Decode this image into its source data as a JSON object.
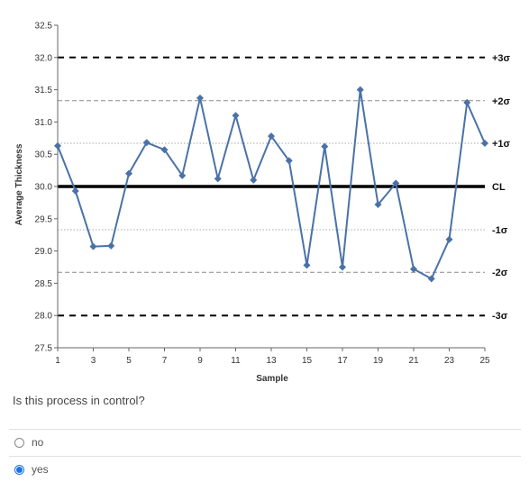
{
  "colors": {
    "series": "#4a72a8",
    "cl": "#000000",
    "sigma1": "#a8a8a8",
    "sigma2": "#8a8a8a",
    "sigma3": "#000000",
    "accent": "#1a73e8"
  },
  "chart_data": {
    "type": "line",
    "xlabel": "Sample",
    "ylabel": "Average Thickness",
    "xlim": [
      1,
      25
    ],
    "ylim": [
      27.5,
      32.5
    ],
    "xticks": [
      1,
      3,
      5,
      7,
      9,
      11,
      13,
      15,
      17,
      19,
      21,
      23,
      25
    ],
    "yticks": [
      27.5,
      28.0,
      28.5,
      29.0,
      29.5,
      30.0,
      30.5,
      31.0,
      31.5,
      32.0,
      32.5
    ],
    "ytick_labels": [
      "27.5",
      "28.0",
      "28.5",
      "29.0",
      "29.5",
      "30.0",
      "30.5",
      "31.0",
      "31.5",
      "32.0",
      "32.5"
    ],
    "grid": false,
    "series": [
      {
        "x": [
          1,
          2,
          3,
          4,
          5,
          6,
          7,
          8,
          9,
          10,
          11,
          12,
          13,
          14,
          15,
          16,
          17,
          18,
          19,
          20,
          21,
          22,
          23,
          24,
          25
        ],
        "values": [
          30.63,
          29.93,
          29.07,
          29.08,
          30.2,
          30.68,
          30.57,
          30.17,
          31.37,
          30.12,
          31.1,
          30.1,
          30.78,
          30.4,
          28.78,
          30.62,
          28.75,
          31.5,
          29.72,
          30.05,
          28.72,
          28.57,
          29.18,
          31.3,
          30.67
        ]
      }
    ],
    "reference_lines": [
      {
        "label": "+3σ",
        "value": 32.0,
        "style": "dashed-bold"
      },
      {
        "label": "+2σ",
        "value": 31.33,
        "style": "dashed"
      },
      {
        "label": "+1σ",
        "value": 30.67,
        "style": "dotted"
      },
      {
        "label": "CL",
        "value": 30.0,
        "style": "solid-bold"
      },
      {
        "label": "-1σ",
        "value": 29.33,
        "style": "dotted"
      },
      {
        "label": "-2σ",
        "value": 28.67,
        "style": "dashed"
      },
      {
        "label": "-3σ",
        "value": 28.0,
        "style": "dashed-bold"
      }
    ]
  },
  "question": {
    "text": "Is this process in control?",
    "options": [
      {
        "label": "no",
        "selected": false
      },
      {
        "label": "yes",
        "selected": true
      }
    ]
  }
}
